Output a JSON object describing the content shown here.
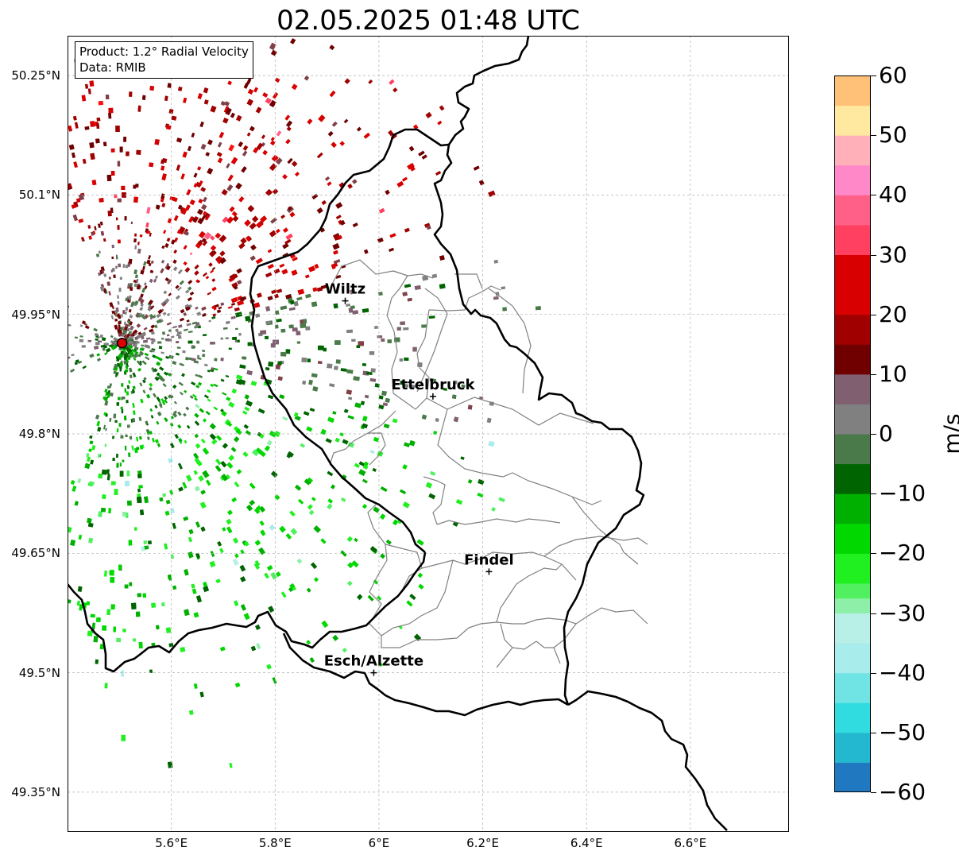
{
  "title": "02.05.2025 01:48 UTC",
  "info": {
    "product": "Product: 1.2° Radial Velocity",
    "source": "Data: RMIB"
  },
  "map": {
    "extent": {
      "lon_min": 5.4,
      "lon_max": 6.79,
      "lat_min": 49.3,
      "lat_max": 50.3
    },
    "lat_ticks": [
      {
        "value": 50.25,
        "label": "50.25°N"
      },
      {
        "value": 50.1,
        "label": "50.1°N"
      },
      {
        "value": 49.95,
        "label": "49.95°N"
      },
      {
        "value": 49.8,
        "label": "49.8°N"
      },
      {
        "value": 49.65,
        "label": "49.65°N"
      },
      {
        "value": 49.5,
        "label": "49.5°N"
      },
      {
        "value": 49.35,
        "label": "49.35°N"
      }
    ],
    "lon_ticks": [
      {
        "value": 5.6,
        "label": "5.6°E"
      },
      {
        "value": 5.8,
        "label": "5.8°E"
      },
      {
        "value": 6.0,
        "label": "6°E"
      },
      {
        "value": 6.2,
        "label": "6.2°E"
      },
      {
        "value": 6.4,
        "label": "6.4°E"
      },
      {
        "value": 6.6,
        "label": "6.6°E"
      }
    ],
    "radar_site": {
      "lon": 5.505,
      "lat": 49.914
    },
    "cities": [
      {
        "name": "Wiltz",
        "lon": 5.935,
        "lat": 49.967
      },
      {
        "name": "Ettelbruck",
        "lon": 6.104,
        "lat": 49.847
      },
      {
        "name": "Findel",
        "lon": 6.212,
        "lat": 49.627
      },
      {
        "name": "Esch/Alzette",
        "lon": 5.99,
        "lat": 49.5
      }
    ],
    "colors": {
      "border": "#000000",
      "cantons": "#808080",
      "grid": "#b0b0b0",
      "radar_site": "#e00000"
    }
  },
  "colorbar": {
    "unit": "m/s",
    "min": -60,
    "max": 60,
    "ticks": [
      {
        "value": 60,
        "label": "60"
      },
      {
        "value": 50,
        "label": "50"
      },
      {
        "value": 40,
        "label": "40"
      },
      {
        "value": 30,
        "label": "30"
      },
      {
        "value": 20,
        "label": "20"
      },
      {
        "value": 10,
        "label": "10"
      },
      {
        "value": 0,
        "label": "0"
      },
      {
        "value": -10,
        "label": "−10"
      },
      {
        "value": -20,
        "label": "−20"
      },
      {
        "value": -30,
        "label": "−30"
      },
      {
        "value": -40,
        "label": "−40"
      },
      {
        "value": -50,
        "label": "−50"
      },
      {
        "value": -60,
        "label": "−60"
      }
    ],
    "stops": [
      {
        "value": -60,
        "color": "#1f78c0"
      },
      {
        "value": -55,
        "color": "#24b8d0"
      },
      {
        "value": -50,
        "color": "#30dce0"
      },
      {
        "value": -45,
        "color": "#70e4e4"
      },
      {
        "value": -40,
        "color": "#a8ecec"
      },
      {
        "value": -35,
        "color": "#b8f0e8"
      },
      {
        "value": -32,
        "color": "#8ef0a8"
      },
      {
        "value": -28,
        "color": "#50f060"
      },
      {
        "value": -25,
        "color": "#20f020"
      },
      {
        "value": -20,
        "color": "#00d800"
      },
      {
        "value": -15,
        "color": "#00b000"
      },
      {
        "value": -10,
        "color": "#006400"
      },
      {
        "value": -6,
        "color": "#4a7a4a"
      },
      {
        "value": 0,
        "color": "#808080"
      },
      {
        "value": 5,
        "color": "#806070"
      },
      {
        "value": 8,
        "color": "#804048"
      },
      {
        "value": 10,
        "color": "#700000"
      },
      {
        "value": 15,
        "color": "#a00000"
      },
      {
        "value": 20,
        "color": "#d80000"
      },
      {
        "value": 28,
        "color": "#ff1010"
      },
      {
        "value": 30,
        "color": "#ff4060"
      },
      {
        "value": 35,
        "color": "#ff6088"
      },
      {
        "value": 40,
        "color": "#ff88c8"
      },
      {
        "value": 45,
        "color": "#ffb0b8"
      },
      {
        "value": 50,
        "color": "#ffe8a0"
      },
      {
        "value": 55,
        "color": "#ffc078"
      },
      {
        "value": 60,
        "color": "#ff9850"
      }
    ]
  }
}
